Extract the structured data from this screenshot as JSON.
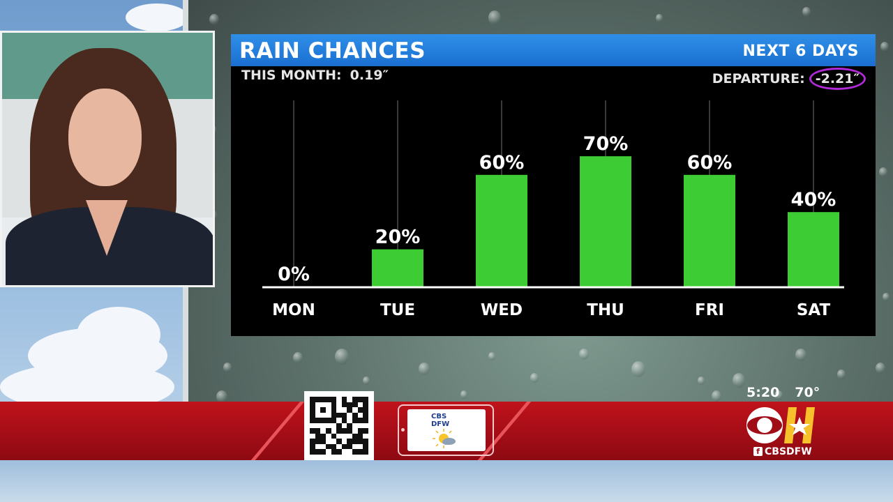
{
  "panel": {
    "title": "RAIN CHANCES",
    "subtitle": "NEXT 6 DAYS",
    "this_month_label": "THIS MONTH:",
    "this_month_value": "0.19″",
    "departure_label": "DEPARTURE:",
    "departure_value": "-2.21″"
  },
  "chart_data": {
    "type": "bar",
    "title": "RAIN CHANCES",
    "categories": [
      "MON",
      "TUE",
      "WED",
      "THU",
      "FRI",
      "SAT"
    ],
    "values": [
      0,
      20,
      60,
      70,
      60,
      40
    ],
    "value_labels": [
      "0%",
      "20%",
      "60%",
      "70%",
      "60%",
      "40%"
    ],
    "ylim": [
      0,
      100
    ],
    "grid": true,
    "bar_color": "#3dcc33"
  },
  "ticker": {
    "time": "5:20",
    "temperature": "70°",
    "handle": "CBSDFW",
    "phone_brand_line1": "CBS",
    "phone_brand_line2": "DFW"
  },
  "colors": {
    "header_blue": "#1a6fd0",
    "ticker_red": "#a10d16",
    "highlight_purple": "#b02ad8"
  },
  "icons": {
    "qr": "qr-code-icon",
    "phone": "phone-app-icon",
    "weather": "sun-cloud-icon",
    "logo": "cbs11-logo",
    "facebook": "facebook-icon"
  }
}
